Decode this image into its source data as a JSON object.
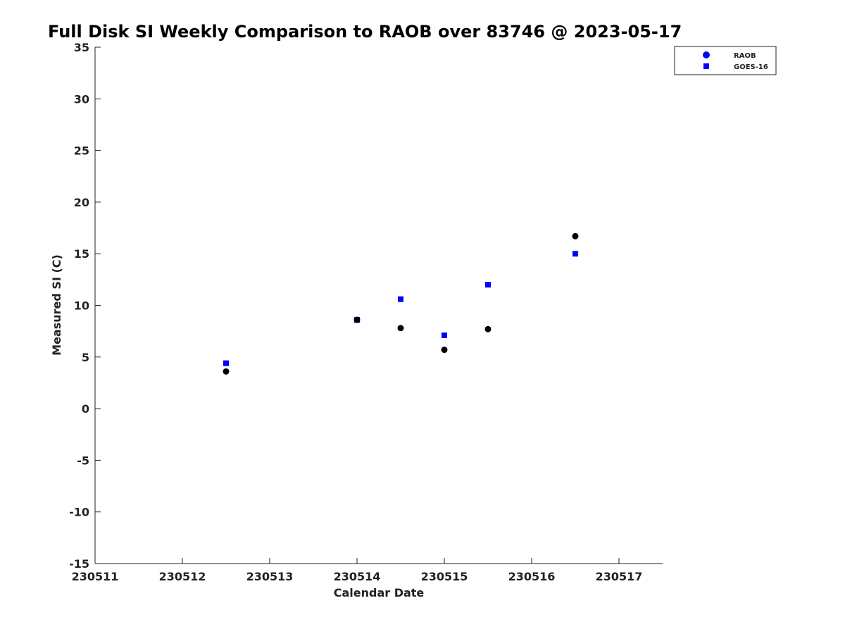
{
  "chart_data": {
    "type": "scatter",
    "title": "Full Disk SI Weekly Comparison to RAOB over 83746 @ 2023-05-17",
    "xlabel": "Calendar Date",
    "ylabel": "Measured SI (C)",
    "xlim": [
      230511,
      230517.5
    ],
    "ylim": [
      -15,
      35
    ],
    "xticks": [
      230511,
      230512,
      230513,
      230514,
      230515,
      230516,
      230517
    ],
    "yticks": [
      -15,
      -10,
      -5,
      0,
      5,
      10,
      15,
      20,
      25,
      30,
      35
    ],
    "grid": false,
    "legend_position": "top-right",
    "series": [
      {
        "name": "RAOB",
        "marker": "circle",
        "color": "#000000",
        "legend_color": "#0000ff",
        "x": [
          230512.5,
          230514,
          230514.5,
          230515,
          230515.5,
          230516.5
        ],
        "y": [
          3.6,
          8.6,
          7.8,
          5.7,
          7.7,
          16.7
        ]
      },
      {
        "name": "GOES-16",
        "marker": "square",
        "color": "#0000ff",
        "legend_color": "#0000ff",
        "x": [
          230512.5,
          230514,
          230514.5,
          230515,
          230515.5,
          230516.5
        ],
        "y": [
          4.4,
          8.6,
          10.6,
          7.1,
          12.0,
          15.0
        ]
      }
    ]
  }
}
